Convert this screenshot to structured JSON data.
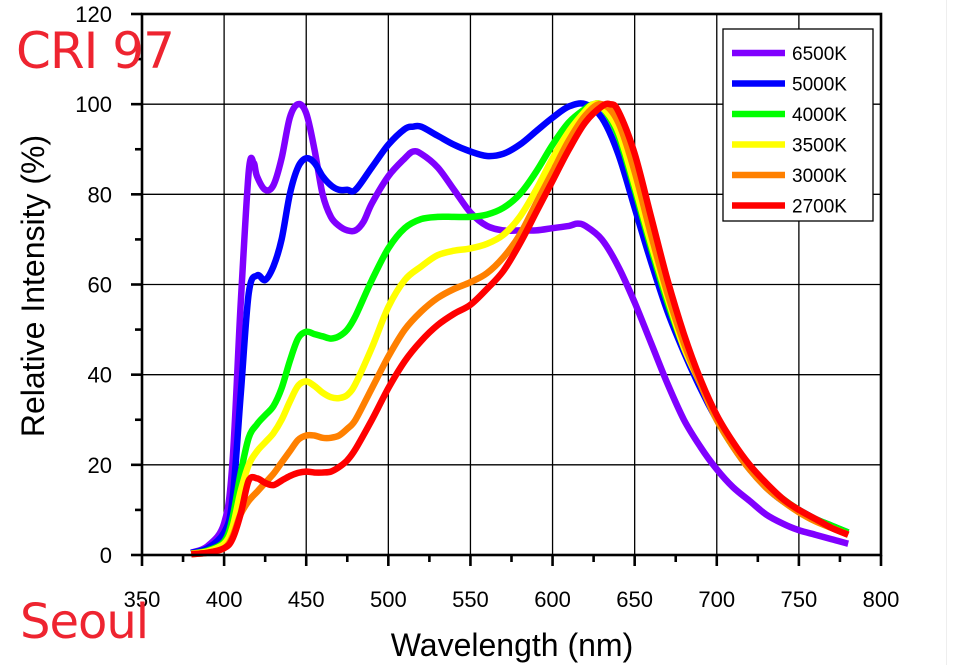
{
  "overlay": {
    "cri_label": "CRI 97",
    "brand_label": "Seoul",
    "overlay_color": "#ee2430"
  },
  "chart_data": {
    "type": "line",
    "title": "",
    "xlabel": "Wavelength (nm)",
    "ylabel": "Relative Intensity (%)",
    "xlim": [
      350,
      800
    ],
    "ylim": [
      0,
      120
    ],
    "xticks": [
      350,
      400,
      450,
      500,
      550,
      600,
      650,
      700,
      750,
      800
    ],
    "yticks": [
      0,
      20,
      40,
      60,
      80,
      100,
      120
    ],
    "xtick_labels": [
      "350",
      "400",
      "450",
      "500",
      "550",
      "600",
      "650",
      "700",
      "750",
      "800"
    ],
    "ytick_labels": [
      "0",
      "20",
      "40",
      "60",
      "80",
      "100",
      "120"
    ],
    "x_minor_step": 25,
    "y_minor_step": 10,
    "grid": true,
    "legend_position": "top-right",
    "series": [
      {
        "name": "6500K",
        "color": "#8000ff",
        "x": [
          380,
          390,
          400,
          405,
          410,
          415,
          418,
          420,
          425,
          430,
          435,
          440,
          445,
          450,
          455,
          460,
          465,
          470,
          475,
          480,
          485,
          490,
          500,
          510,
          515,
          520,
          530,
          540,
          550,
          560,
          570,
          580,
          590,
          600,
          610,
          615,
          620,
          630,
          640,
          650,
          660,
          670,
          680,
          690,
          700,
          710,
          720,
          730,
          740,
          750,
          760,
          770,
          780
        ],
        "values": [
          0.5,
          2,
          7,
          20,
          55,
          85,
          87,
          84,
          81,
          82,
          88,
          97,
          100,
          98,
          90,
          80,
          75,
          73,
          72,
          72,
          74,
          78,
          84,
          88,
          89.5,
          89,
          86,
          81,
          76,
          73,
          72,
          72,
          72,
          72.5,
          73,
          73.5,
          73,
          70,
          64,
          56,
          47,
          38,
          30,
          24,
          19,
          15,
          12,
          9,
          7,
          5.5,
          4.5,
          3.5,
          2.5
        ]
      },
      {
        "name": "5000K",
        "color": "#0000ff",
        "x": [
          380,
          390,
          400,
          405,
          410,
          415,
          420,
          425,
          430,
          435,
          440,
          445,
          450,
          455,
          460,
          465,
          470,
          475,
          480,
          490,
          500,
          510,
          515,
          520,
          530,
          540,
          550,
          560,
          570,
          580,
          590,
          600,
          610,
          620,
          630,
          640,
          650,
          660,
          670,
          680,
          690,
          700,
          710,
          720,
          730,
          740,
          750,
          760,
          770,
          780
        ],
        "values": [
          0.5,
          1.5,
          5,
          12,
          35,
          58,
          62,
          61,
          64,
          70,
          80,
          86,
          88,
          87,
          84,
          82,
          81,
          81,
          81,
          86,
          91,
          94.5,
          95,
          95,
          93,
          91,
          89.5,
          88.5,
          89,
          91,
          94,
          97,
          99.5,
          100,
          97,
          89,
          77,
          65,
          54,
          45,
          37,
          30,
          24,
          19,
          15,
          12,
          10,
          8,
          6.5,
          5
        ]
      },
      {
        "name": "4000K",
        "color": "#00ff00",
        "x": [
          380,
          390,
          400,
          405,
          410,
          415,
          420,
          425,
          430,
          435,
          440,
          445,
          450,
          455,
          460,
          465,
          470,
          475,
          480,
          490,
          500,
          510,
          520,
          530,
          540,
          550,
          560,
          570,
          580,
          590,
          600,
          610,
          620,
          625,
          630,
          640,
          650,
          660,
          670,
          680,
          690,
          700,
          710,
          720,
          730,
          740,
          750,
          760,
          770,
          780
        ],
        "values": [
          0.3,
          1,
          3,
          8,
          18,
          26,
          29,
          31,
          33,
          37,
          43,
          48,
          49.5,
          49,
          48.5,
          48,
          48.5,
          50,
          53,
          61,
          68,
          72.5,
          74.5,
          75,
          75,
          75,
          75.5,
          77,
          80,
          85,
          91,
          96,
          99,
          100,
          99.5,
          93,
          81,
          68,
          56,
          46,
          38,
          30,
          24,
          19.5,
          15.5,
          12.5,
          10,
          8,
          6.5,
          5
        ]
      },
      {
        "name": "3500K",
        "color": "#ffff00",
        "x": [
          380,
          390,
          400,
          405,
          410,
          415,
          420,
          425,
          430,
          435,
          440,
          445,
          450,
          455,
          460,
          465,
          470,
          475,
          480,
          490,
          500,
          510,
          520,
          530,
          540,
          550,
          560,
          570,
          580,
          590,
          600,
          610,
          620,
          625,
          630,
          640,
          650,
          660,
          670,
          680,
          690,
          700,
          710,
          720,
          730,
          740,
          750,
          760,
          770,
          780
        ],
        "values": [
          0.3,
          0.8,
          2.5,
          6,
          14,
          20,
          23,
          25,
          27,
          30,
          34,
          37.5,
          38.5,
          37.5,
          36,
          35,
          34.8,
          35.5,
          38,
          46,
          55,
          61,
          64,
          66.5,
          67.5,
          68,
          69,
          71,
          75,
          81,
          88,
          94,
          98.5,
          100,
          99.5,
          94,
          82,
          69,
          57,
          46,
          38,
          30,
          24,
          19,
          15,
          12,
          9.5,
          7.5,
          6,
          4.5
        ]
      },
      {
        "name": "3000K",
        "color": "#ff8000",
        "x": [
          380,
          390,
          400,
          405,
          410,
          415,
          420,
          425,
          430,
          435,
          440,
          445,
          450,
          455,
          460,
          465,
          470,
          475,
          480,
          490,
          500,
          510,
          520,
          530,
          540,
          550,
          560,
          570,
          580,
          590,
          600,
          610,
          620,
          630,
          640,
          650,
          660,
          670,
          680,
          690,
          700,
          710,
          720,
          730,
          740,
          750,
          760,
          770,
          780
        ],
        "values": [
          0.2,
          0.5,
          1.5,
          4,
          9,
          12,
          14,
          16,
          18,
          20.5,
          23,
          25.5,
          26.5,
          26.5,
          26,
          26,
          26.5,
          28,
          30,
          37,
          44,
          50,
          54,
          57,
          59,
          60.5,
          62.5,
          66,
          71,
          78,
          85,
          92,
          97.5,
          100,
          96,
          85,
          71,
          58,
          47,
          38,
          30,
          24,
          19,
          15,
          12,
          9.5,
          7.5,
          6,
          4.5
        ]
      },
      {
        "name": "2700K",
        "color": "#ff0000",
        "x": [
          380,
          390,
          400,
          405,
          410,
          415,
          420,
          425,
          430,
          435,
          440,
          445,
          450,
          455,
          460,
          465,
          470,
          475,
          480,
          490,
          500,
          510,
          520,
          530,
          540,
          550,
          560,
          570,
          580,
          590,
          600,
          610,
          620,
          630,
          635,
          640,
          650,
          660,
          670,
          680,
          690,
          700,
          710,
          720,
          730,
          740,
          750,
          760,
          770,
          780
        ],
        "values": [
          0.2,
          0.5,
          1.5,
          3.5,
          9,
          16.5,
          17,
          16,
          15.5,
          16.5,
          17.5,
          18.2,
          18.5,
          18.3,
          18.3,
          18.5,
          19.5,
          21,
          23.5,
          30,
          37,
          43,
          47.5,
          51,
          53.5,
          55.5,
          59,
          63,
          69,
          76,
          83,
          90,
          96,
          99.5,
          100,
          98.5,
          89,
          75,
          61,
          49,
          39,
          31,
          25,
          20,
          16,
          12.5,
          10,
          8,
          6,
          4.5
        ]
      }
    ]
  }
}
